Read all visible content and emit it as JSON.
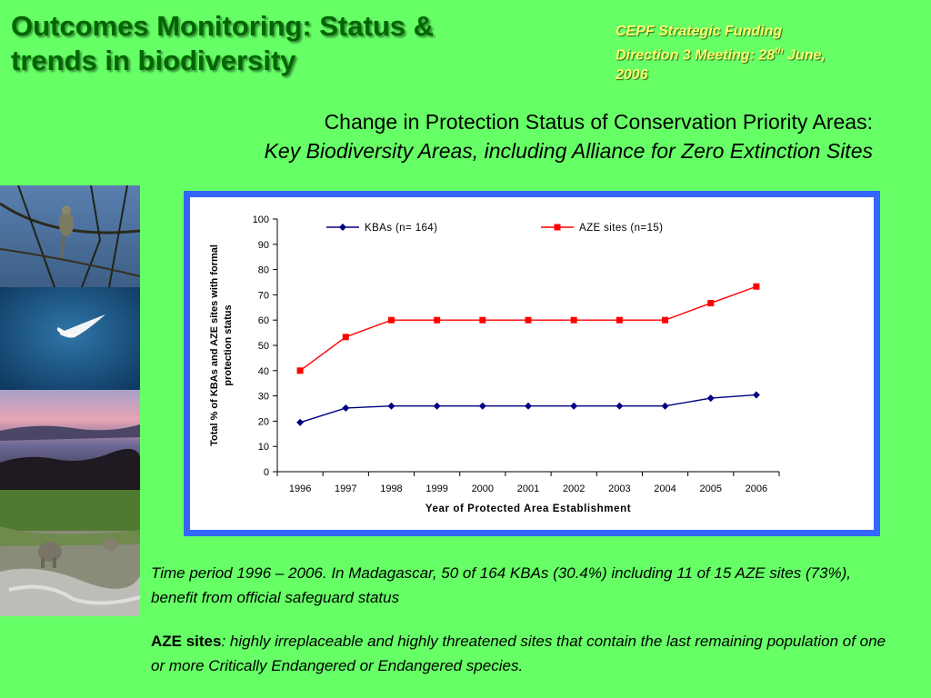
{
  "header": {
    "title": "Outcomes Monitoring: Status & trends in biodiversity",
    "meeting_line1": "CEPF Strategic Funding",
    "meeting_line2_pre": "Direction 3 Meeting: 28",
    "meeting_sup": "th",
    "meeting_line2_post": " June,",
    "meeting_line3": "2006"
  },
  "subheading": {
    "line1": "Change in Protection Status of Conservation Priority Areas:",
    "line2": "Key Biodiversity Areas, including Alliance for Zero Extinction Sites"
  },
  "photos": [
    "bird-on-branch",
    "white-seabird-in-flight",
    "misty-forest-dusk",
    "elephants-at-waterhole"
  ],
  "colors": {
    "background": "#66ff66",
    "title": "#006600",
    "meeting": "#ffff66",
    "frame": "#3366ff",
    "kba": "#000080",
    "aze": "#ff0000"
  },
  "chart_data": {
    "type": "line",
    "x": [
      "1996",
      "1997",
      "1998",
      "1999",
      "2000",
      "2001",
      "2002",
      "2003",
      "2004",
      "2005",
      "2006"
    ],
    "series": [
      {
        "name": "KBAs (n= 164)",
        "values": [
          19.5,
          25.2,
          26,
          26,
          26,
          26,
          26,
          26,
          26,
          29.1,
          30.4
        ],
        "color": "#000080",
        "marker": "diamond"
      },
      {
        "name": "AZE sites (n=15)",
        "values": [
          40,
          53.3,
          60,
          60,
          60,
          60,
          60,
          60,
          60,
          66.7,
          73.3
        ],
        "color": "#ff0000",
        "marker": "square"
      }
    ],
    "ylim": [
      0,
      100
    ],
    "yticks": [
      "0",
      "10",
      "20",
      "30",
      "40",
      "50",
      "60",
      "70",
      "80",
      "90",
      "100"
    ],
    "xlabel": "Year of Protected Area Establishment",
    "ylabel_line1": "Total % of KBAs and AZE sites with formal",
    "ylabel_line2": "protection status",
    "legend": "top"
  },
  "notes": {
    "para1": "Time period 1996 – 2006.  In Madagascar, 50 of 164 KBAs (30.4%) including 11 of 15 AZE sites (73%), benefit from official safeguard status",
    "para2_bold": "AZE sites",
    "para2_rest": ": highly irreplaceable and highly threatened sites that  contain the last remaining population of one or more Critically Endangered or Endangered species."
  }
}
